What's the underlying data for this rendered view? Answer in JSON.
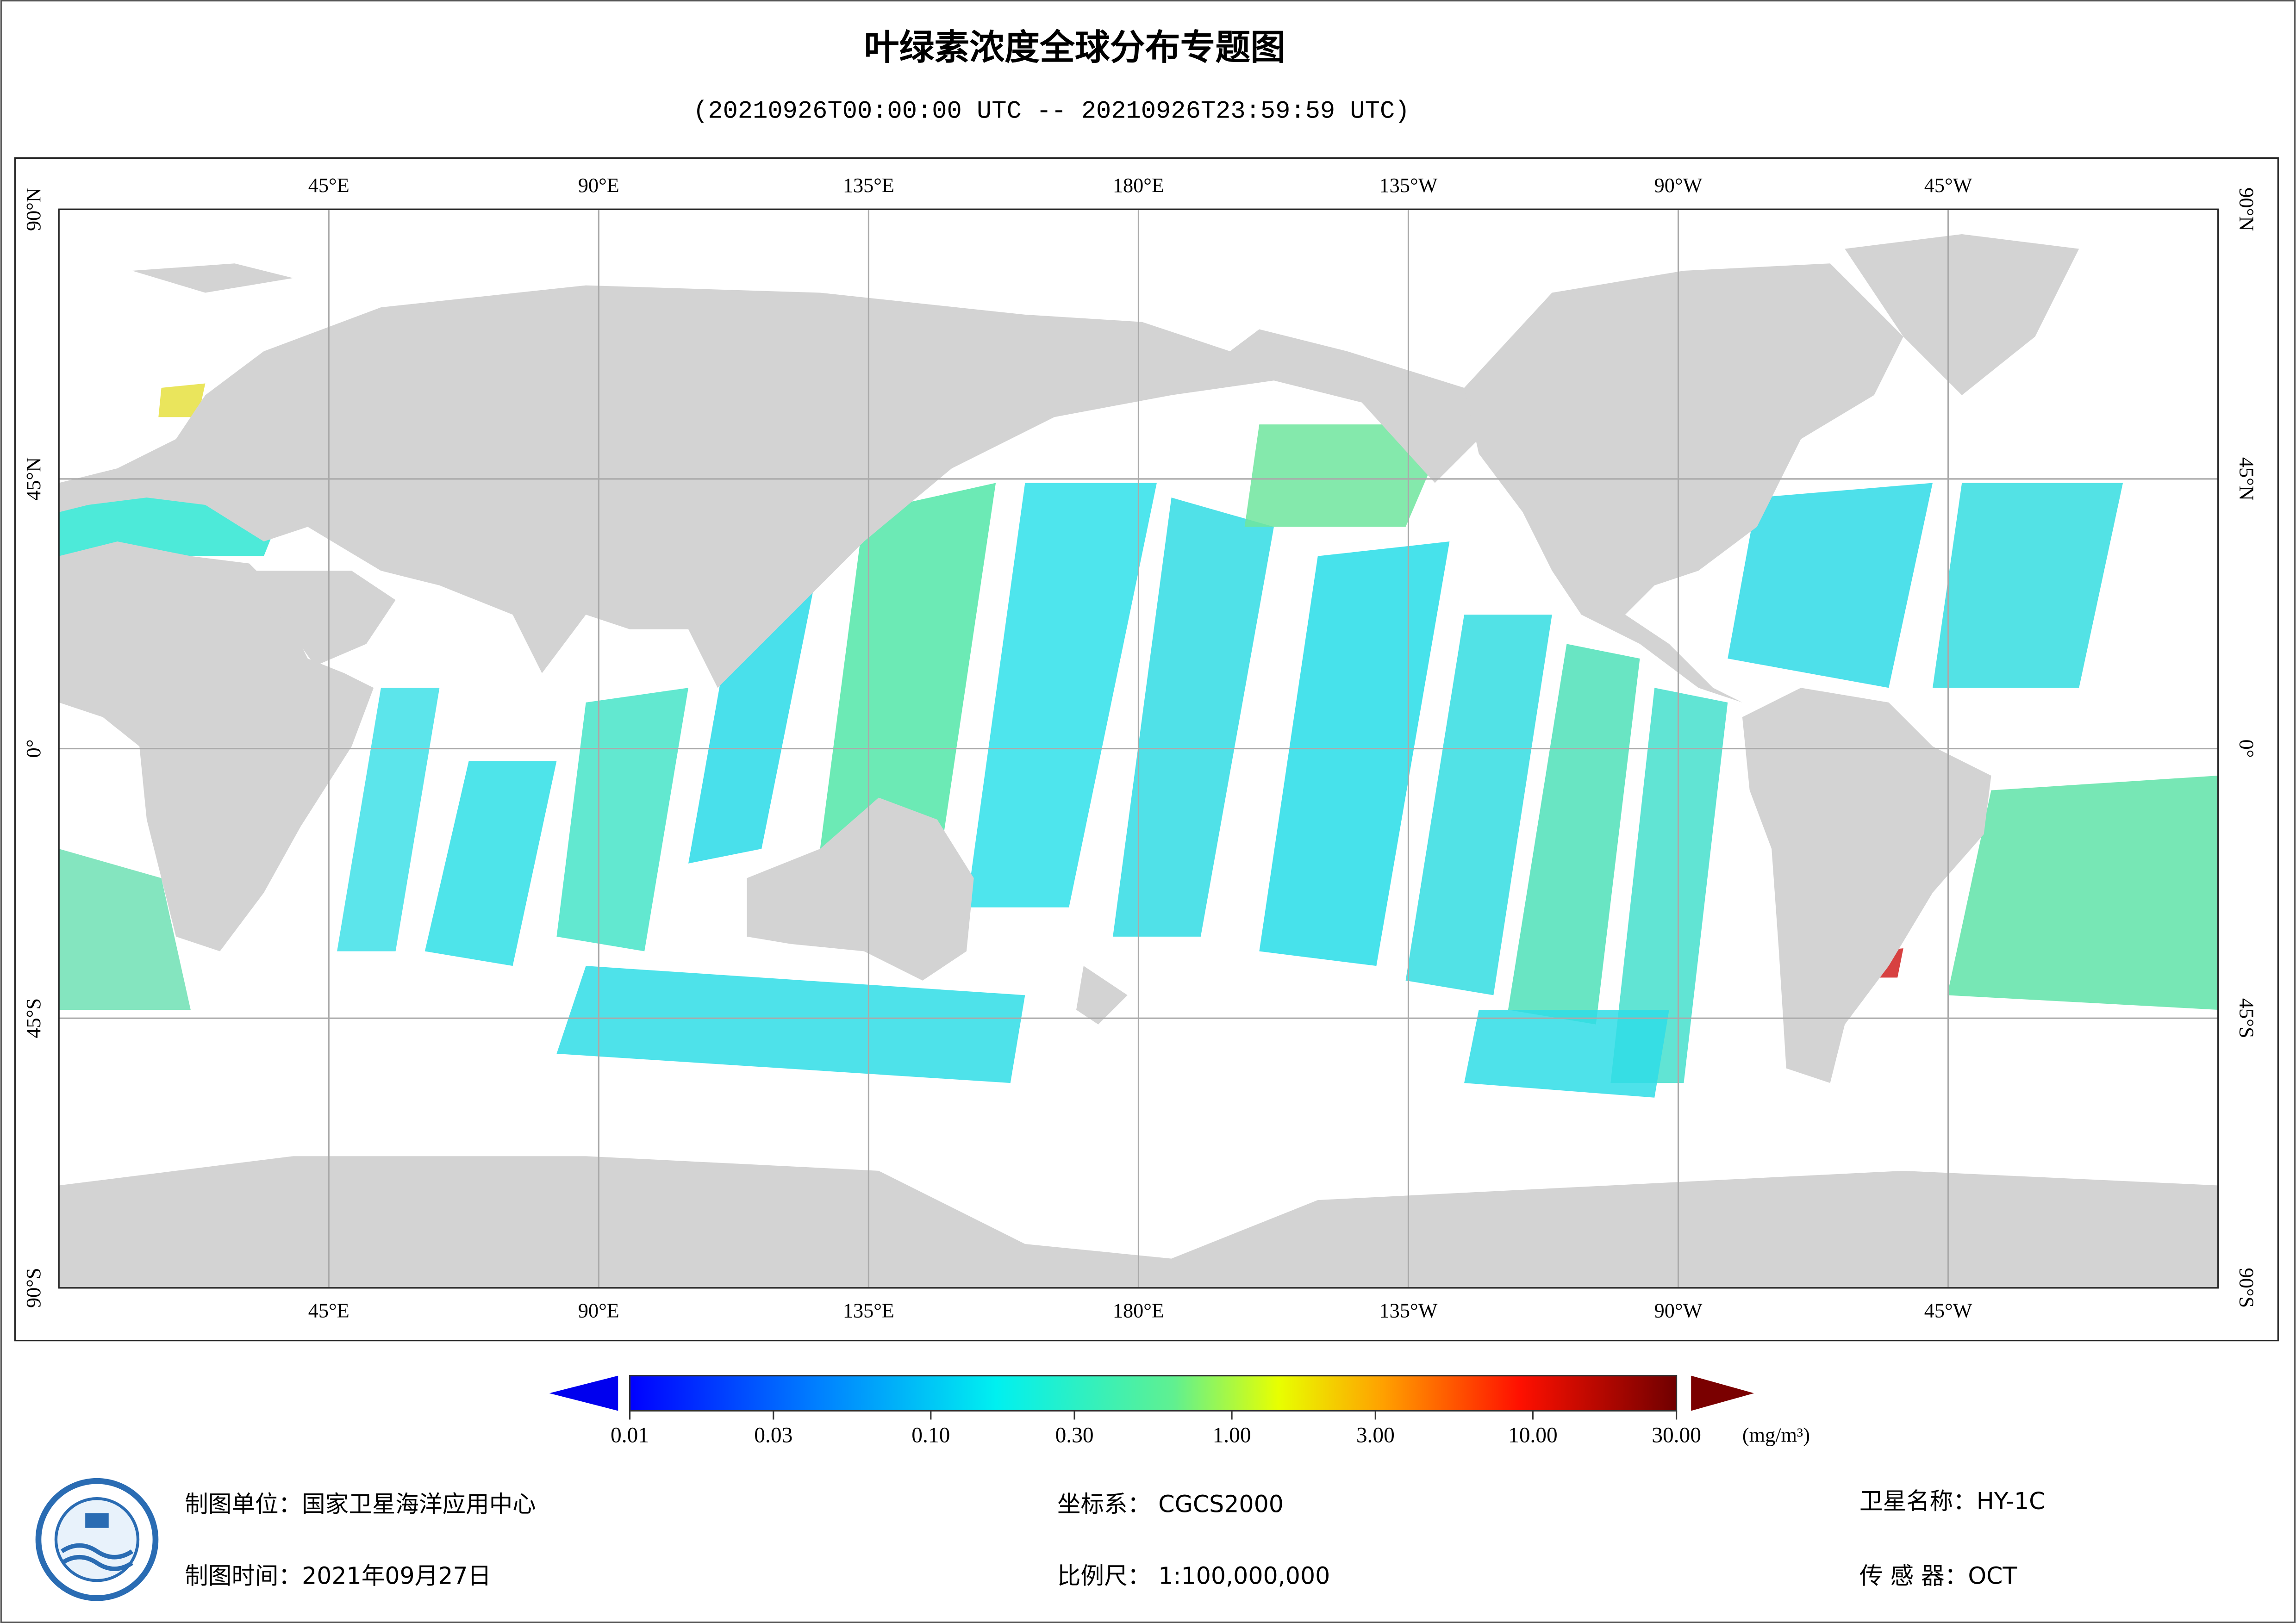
{
  "title": "叶绿素浓度全球分布专题图",
  "subtitle": "(20210926T00:00:00 UTC -- 20210926T23:59:59 UTC)",
  "map": {
    "lonlim": [
      0,
      360
    ],
    "latlim": [
      -90,
      90
    ],
    "lon_ticks": [
      {
        "value": 45,
        "label": "45°E"
      },
      {
        "value": 90,
        "label": "90°E"
      },
      {
        "value": 135,
        "label": "135°E"
      },
      {
        "value": 180,
        "label": "180°E"
      },
      {
        "value": 225,
        "label": "135°W"
      },
      {
        "value": 270,
        "label": "90°W"
      },
      {
        "value": 315,
        "label": "45°W"
      }
    ],
    "lat_ticks": [
      {
        "value": 90,
        "label": "90°N"
      },
      {
        "value": 45,
        "label": "45°N"
      },
      {
        "value": 0,
        "label": "0°"
      },
      {
        "value": -45,
        "label": "45°S"
      },
      {
        "value": -90,
        "label": "90°S"
      }
    ]
  },
  "colorbar": {
    "scale": "log",
    "range": [
      0.01,
      30
    ],
    "ticks": [
      0.01,
      0.03,
      {
        "value": 0.1,
        "label": "0.10"
      },
      {
        "value": 0.3,
        "label": "0.30"
      },
      {
        "value": 1,
        "label": "1.00"
      },
      {
        "value": 3,
        "label": "3.00"
      },
      {
        "value": 10,
        "label": "10.00"
      },
      {
        "value": 30,
        "label": "30.00"
      }
    ],
    "unit": "(mg/m³)"
  },
  "footer": {
    "producer": "制图单位：国家卫星海洋应用中心",
    "date": "制图时间：2021年09月27日",
    "crs": "坐标系：  CGCS2000",
    "scale": "比例尺：  1:100,000,000",
    "satellite": "卫星名称：HY-1C",
    "sensor": "传 感 器：OCT"
  }
}
